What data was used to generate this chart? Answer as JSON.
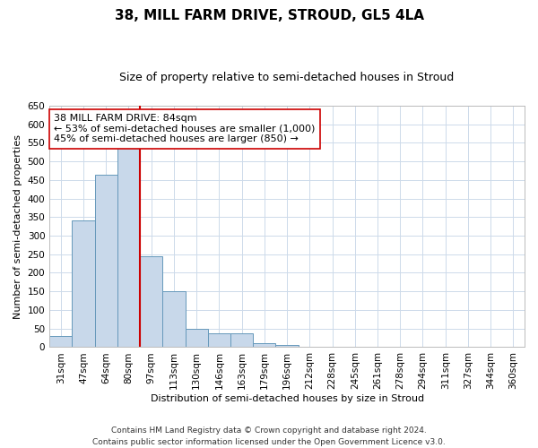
{
  "title": "38, MILL FARM DRIVE, STROUD, GL5 4LA",
  "subtitle": "Size of property relative to semi-detached houses in Stroud",
  "xlabel": "Distribution of semi-detached houses by size in Stroud",
  "ylabel": "Number of semi-detached properties",
  "categories": [
    "31sqm",
    "47sqm",
    "64sqm",
    "80sqm",
    "97sqm",
    "113sqm",
    "130sqm",
    "146sqm",
    "163sqm",
    "179sqm",
    "196sqm",
    "212sqm",
    "228sqm",
    "245sqm",
    "261sqm",
    "278sqm",
    "294sqm",
    "311sqm",
    "327sqm",
    "344sqm",
    "360sqm"
  ],
  "values": [
    30,
    340,
    465,
    535,
    245,
    150,
    50,
    38,
    37,
    10,
    5,
    2,
    1,
    1,
    0,
    0,
    0,
    2,
    0,
    0,
    2
  ],
  "bar_color": "#c8d8ea",
  "bar_edge_color": "#6699bb",
  "property_label": "38 MILL FARM DRIVE: 84sqm",
  "annotation_smaller": "← 53% of semi-detached houses are smaller (1,000)",
  "annotation_larger": "45% of semi-detached houses are larger (850) →",
  "vline_color": "#cc0000",
  "vline_x": 3.5,
  "ylim": [
    0,
    650
  ],
  "yticks": [
    0,
    50,
    100,
    150,
    200,
    250,
    300,
    350,
    400,
    450,
    500,
    550,
    600,
    650
  ],
  "footnote_line1": "Contains HM Land Registry data © Crown copyright and database right 2024.",
  "footnote_line2": "Contains public sector information licensed under the Open Government Licence v3.0.",
  "background_color": "#ffffff",
  "grid_color": "#cddaea",
  "title_fontsize": 11,
  "subtitle_fontsize": 9,
  "annotation_fontsize": 8,
  "axis_label_fontsize": 8,
  "tick_fontsize": 7.5,
  "footnote_fontsize": 6.5
}
